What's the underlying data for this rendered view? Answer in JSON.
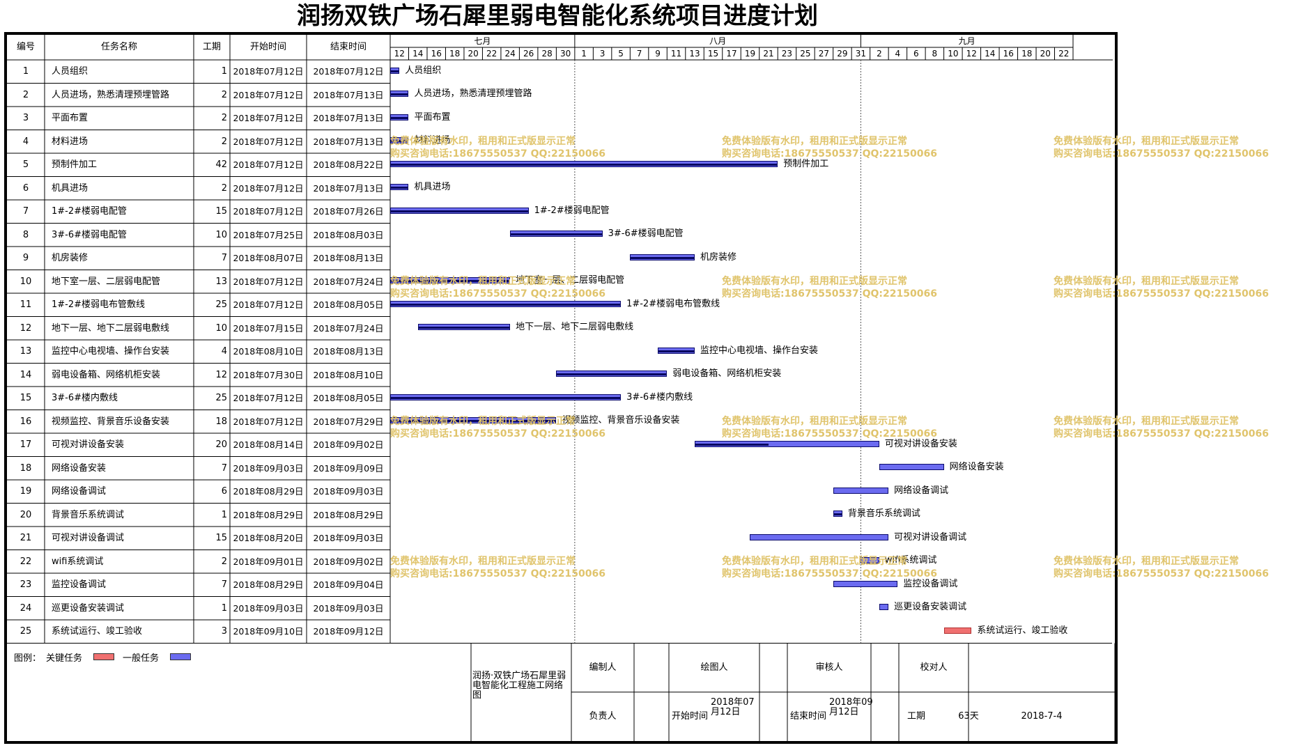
{
  "title": "润扬双铁广场石犀里弱电智能化系统项目进度计划",
  "headers": {
    "id": "编号",
    "name": "任务名称",
    "duration": "工期",
    "start": "开始时间",
    "end": "结束时间"
  },
  "timeline": {
    "months": [
      "七月",
      "八月",
      "九月"
    ],
    "days": [
      "12",
      "14",
      "16",
      "18",
      "20",
      "22",
      "24",
      "26",
      "28",
      "30",
      "1",
      "3",
      "5",
      "7",
      "9",
      "11",
      "13",
      "15",
      "17",
      "19",
      "21",
      "23",
      "25",
      "27",
      "29",
      "31",
      "2",
      "4",
      "6",
      "8",
      "10",
      "12",
      "14",
      "16",
      "18",
      "20",
      "22"
    ]
  },
  "tasks": [
    {
      "id": "1",
      "name": "人员组织",
      "duration": "1",
      "start": "2018年07月12日",
      "end": "2018年07月12日",
      "bar_label": "人员组织"
    },
    {
      "id": "2",
      "name": "人员进场，熟悉清理预埋管路",
      "duration": "2",
      "start": "2018年07月12日",
      "end": "2018年07月13日",
      "bar_label": "人员进场，熟悉清理预埋管路"
    },
    {
      "id": "3",
      "name": "平面布置",
      "duration": "2",
      "start": "2018年07月12日",
      "end": "2018年07月13日",
      "bar_label": "平面布置"
    },
    {
      "id": "4",
      "name": "材料进场",
      "duration": "2",
      "start": "2018年07月12日",
      "end": "2018年07月13日",
      "bar_label": "材料进场"
    },
    {
      "id": "5",
      "name": "预制件加工",
      "duration": "42",
      "start": "2018年07月12日",
      "end": "2018年08月22日",
      "bar_label": "预制件加工"
    },
    {
      "id": "6",
      "name": "机具进场",
      "duration": "2",
      "start": "2018年07月12日",
      "end": "2018年07月13日",
      "bar_label": "机具进场"
    },
    {
      "id": "7",
      "name": "1#-2#楼弱电配管",
      "duration": "15",
      "start": "2018年07月12日",
      "end": "2018年07月26日",
      "bar_label": "1#-2#楼弱电配管"
    },
    {
      "id": "8",
      "name": "3#-6#楼弱电配管",
      "duration": "10",
      "start": "2018年07月25日",
      "end": "2018年08月03日",
      "bar_label": "3#-6#楼弱电配管"
    },
    {
      "id": "9",
      "name": "机房装修",
      "duration": "7",
      "start": "2018年08月07日",
      "end": "2018年08月13日",
      "bar_label": "机房装修"
    },
    {
      "id": "10",
      "name": "地下室一层、二层弱电配管",
      "duration": "13",
      "start": "2018年07月12日",
      "end": "2018年07月24日",
      "bar_label": "地下室一层、二层弱电配管"
    },
    {
      "id": "11",
      "name": "1#-2#楼弱电布管敷线",
      "duration": "25",
      "start": "2018年07月12日",
      "end": "2018年08月05日",
      "bar_label": "1#-2#楼弱电布管敷线"
    },
    {
      "id": "12",
      "name": "地下一层、地下二层弱电敷线",
      "duration": "10",
      "start": "2018年07月15日",
      "end": "2018年07月24日",
      "bar_label": "地下一层、地下二层弱电敷线"
    },
    {
      "id": "13",
      "name": "监控中心电视墙、操作台安装",
      "duration": "4",
      "start": "2018年08月10日",
      "end": "2018年08月13日",
      "bar_label": "监控中心电视墙、操作台安装"
    },
    {
      "id": "14",
      "name": "弱电设备箱、网络机柜安装",
      "duration": "12",
      "start": "2018年07月30日",
      "end": "2018年08月10日",
      "bar_label": "弱电设备箱、网络机柜安装"
    },
    {
      "id": "15",
      "name": "3#-6#楼内敷线",
      "duration": "25",
      "start": "2018年07月12日",
      "end": "2018年08月05日",
      "bar_label": "3#-6#楼内敷线"
    },
    {
      "id": "16",
      "name": "视频监控、背景音乐设备安装",
      "duration": "18",
      "start": "2018年07月12日",
      "end": "2018年07月29日",
      "bar_label": "视频监控、背景音乐设备安装"
    },
    {
      "id": "17",
      "name": "可视对讲设备安装",
      "duration": "20",
      "start": "2018年08月14日",
      "end": "2018年09月02日",
      "bar_label": "可视对讲设备安装"
    },
    {
      "id": "18",
      "name": "网络设备安装",
      "duration": "7",
      "start": "2018年09月03日",
      "end": "2018年09月09日",
      "bar_label": "网络设备安装"
    },
    {
      "id": "19",
      "name": "网络设备调试",
      "duration": "6",
      "start": "2018年08月29日",
      "end": "2018年09月03日",
      "bar_label": "网络设备调试"
    },
    {
      "id": "20",
      "name": "背景音乐系统调试",
      "duration": "1",
      "start": "2018年08月29日",
      "end": "2018年08月29日",
      "bar_label": "背景音乐系统调试"
    },
    {
      "id": "21",
      "name": "可视对讲设备调试",
      "duration": "15",
      "start": "2018年08月20日",
      "end": "2018年09月03日",
      "bar_label": "可视对讲设备调试"
    },
    {
      "id": "22",
      "name": "wifi系统调试",
      "duration": "2",
      "start": "2018年09月01日",
      "end": "2018年09月02日",
      "bar_label": "wifi系统调试"
    },
    {
      "id": "23",
      "name": "监控设备调试",
      "duration": "7",
      "start": "2018年08月29日",
      "end": "2018年09月04日",
      "bar_label": "监控设备调试"
    },
    {
      "id": "24",
      "name": "巡更设备安装调试",
      "duration": "1",
      "start": "2018年09月03日",
      "end": "2018年09月03日",
      "bar_label": "巡更设备安装调试"
    },
    {
      "id": "25",
      "name": "系统试运行、竣工验收",
      "duration": "3",
      "start": "2018年09月10日",
      "end": "2018年09月12日",
      "bar_label": "系统试运行、竣工验收"
    }
  ],
  "chart_data": {
    "type": "gantt",
    "title": "润扬双铁广场石犀里弱电智能化系统项目进度计划",
    "x_axis": {
      "start": "2018-07-12",
      "end": "2018-09-23",
      "unit": "day",
      "month_labels": [
        "七月",
        "八月",
        "九月"
      ]
    },
    "bar_colors": {
      "normal": "#6b6bf0",
      "critical": "#f07070",
      "progress": "#060660"
    },
    "bars": [
      {
        "task": "1",
        "start": "2018-07-12",
        "end": "2018-07-12",
        "critical": false,
        "progress": 1
      },
      {
        "task": "2",
        "start": "2018-07-12",
        "end": "2018-07-13",
        "critical": false,
        "progress": 1
      },
      {
        "task": "3",
        "start": "2018-07-12",
        "end": "2018-07-13",
        "critical": false,
        "progress": 1
      },
      {
        "task": "4",
        "start": "2018-07-12",
        "end": "2018-07-13",
        "critical": false,
        "progress": 1
      },
      {
        "task": "5",
        "start": "2018-07-12",
        "end": "2018-08-22",
        "critical": false,
        "progress": 1
      },
      {
        "task": "6",
        "start": "2018-07-12",
        "end": "2018-07-13",
        "critical": false,
        "progress": 1
      },
      {
        "task": "7",
        "start": "2018-07-12",
        "end": "2018-07-26",
        "critical": false,
        "progress": 1
      },
      {
        "task": "8",
        "start": "2018-07-25",
        "end": "2018-08-03",
        "critical": false,
        "progress": 1
      },
      {
        "task": "9",
        "start": "2018-08-07",
        "end": "2018-08-13",
        "critical": false,
        "progress": 1
      },
      {
        "task": "10",
        "start": "2018-07-12",
        "end": "2018-07-24",
        "critical": false,
        "progress": 1
      },
      {
        "task": "11",
        "start": "2018-07-12",
        "end": "2018-08-05",
        "critical": false,
        "progress": 1
      },
      {
        "task": "12",
        "start": "2018-07-15",
        "end": "2018-07-24",
        "critical": false,
        "progress": 1
      },
      {
        "task": "13",
        "start": "2018-08-10",
        "end": "2018-08-13",
        "critical": false,
        "progress": 1
      },
      {
        "task": "14",
        "start": "2018-07-30",
        "end": "2018-08-10",
        "critical": false,
        "progress": 1
      },
      {
        "task": "15",
        "start": "2018-07-12",
        "end": "2018-08-05",
        "critical": false,
        "progress": 1
      },
      {
        "task": "16",
        "start": "2018-07-12",
        "end": "2018-07-29",
        "critical": false,
        "progress": 1
      },
      {
        "task": "17",
        "start": "2018-08-14",
        "end": "2018-09-02",
        "critical": false,
        "progress": 0.4
      },
      {
        "task": "18",
        "start": "2018-09-03",
        "end": "2018-09-09",
        "critical": false,
        "progress": 0
      },
      {
        "task": "19",
        "start": "2018-08-29",
        "end": "2018-09-03",
        "critical": false,
        "progress": 0
      },
      {
        "task": "20",
        "start": "2018-08-29",
        "end": "2018-08-29",
        "critical": false,
        "progress": 1
      },
      {
        "task": "21",
        "start": "2018-08-20",
        "end": "2018-09-03",
        "critical": false,
        "progress": 0
      },
      {
        "task": "22",
        "start": "2018-09-01",
        "end": "2018-09-02",
        "critical": false,
        "progress": 0
      },
      {
        "task": "23",
        "start": "2018-08-29",
        "end": "2018-09-04",
        "critical": false,
        "progress": 0
      },
      {
        "task": "24",
        "start": "2018-09-03",
        "end": "2018-09-03",
        "critical": false,
        "progress": 0
      },
      {
        "task": "25",
        "start": "2018-09-10",
        "end": "2018-09-12",
        "critical": true,
        "progress": 0
      }
    ]
  },
  "legend": {
    "label": "图例：",
    "critical": "关键任务",
    "normal": "一般任务"
  },
  "footer": {
    "project_name": "润扬·双铁广场石犀里弱电智能化工程施工网络图",
    "preparer_label": "编制人",
    "drawer_label": "绘图人",
    "reviewer_label": "审核人",
    "checker_label": "校对人",
    "manager_label": "负责人",
    "start_label": "开始时间",
    "start_value": "2018年07月12日",
    "end_label": "结束时间",
    "end_value": "2018年09月12日",
    "duration_label": "工期",
    "duration_value": "63天",
    "date_value": "2018-7-4"
  },
  "watermark": {
    "line1": "免费体验版有水印，租用和正式版显示正常",
    "line2": "购买咨询电话:18675550537 QQ:22150066"
  }
}
